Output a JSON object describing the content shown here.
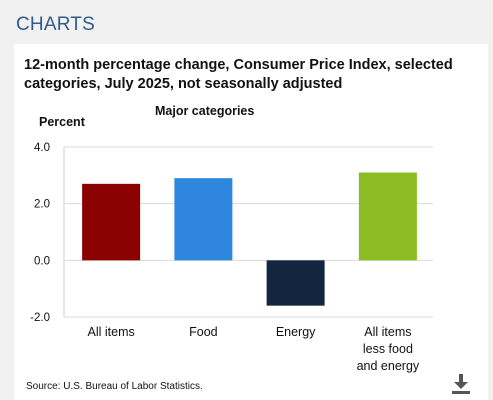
{
  "header": {
    "title": "CHARTS"
  },
  "chart_data": {
    "type": "bar",
    "title": "12-month percentage change, Consumer Price Index, selected categories, July 2025, not seasonally adjusted",
    "subtitle": "Major categories",
    "ylabel": "Percent",
    "xlabel": "",
    "ylim": [
      -2.0,
      4.0
    ],
    "yticks": [
      "4.0",
      "2.0",
      "0.0",
      "-2.0"
    ],
    "ytick_values": [
      4.0,
      2.0,
      0.0,
      -2.0
    ],
    "grid": true,
    "categories": [
      [
        "All items"
      ],
      [
        "Food"
      ],
      [
        "Energy"
      ],
      [
        "All items",
        "less food",
        "and energy"
      ]
    ],
    "values": [
      2.7,
      2.9,
      -1.6,
      3.1
    ],
    "colors": [
      "#8b0000",
      "#2e86de",
      "#13263f",
      "#8bbc21"
    ]
  },
  "footer": {
    "source": "Source: U.S. Bureau of Labor Statistics."
  },
  "icons": {
    "download": "download-icon"
  }
}
